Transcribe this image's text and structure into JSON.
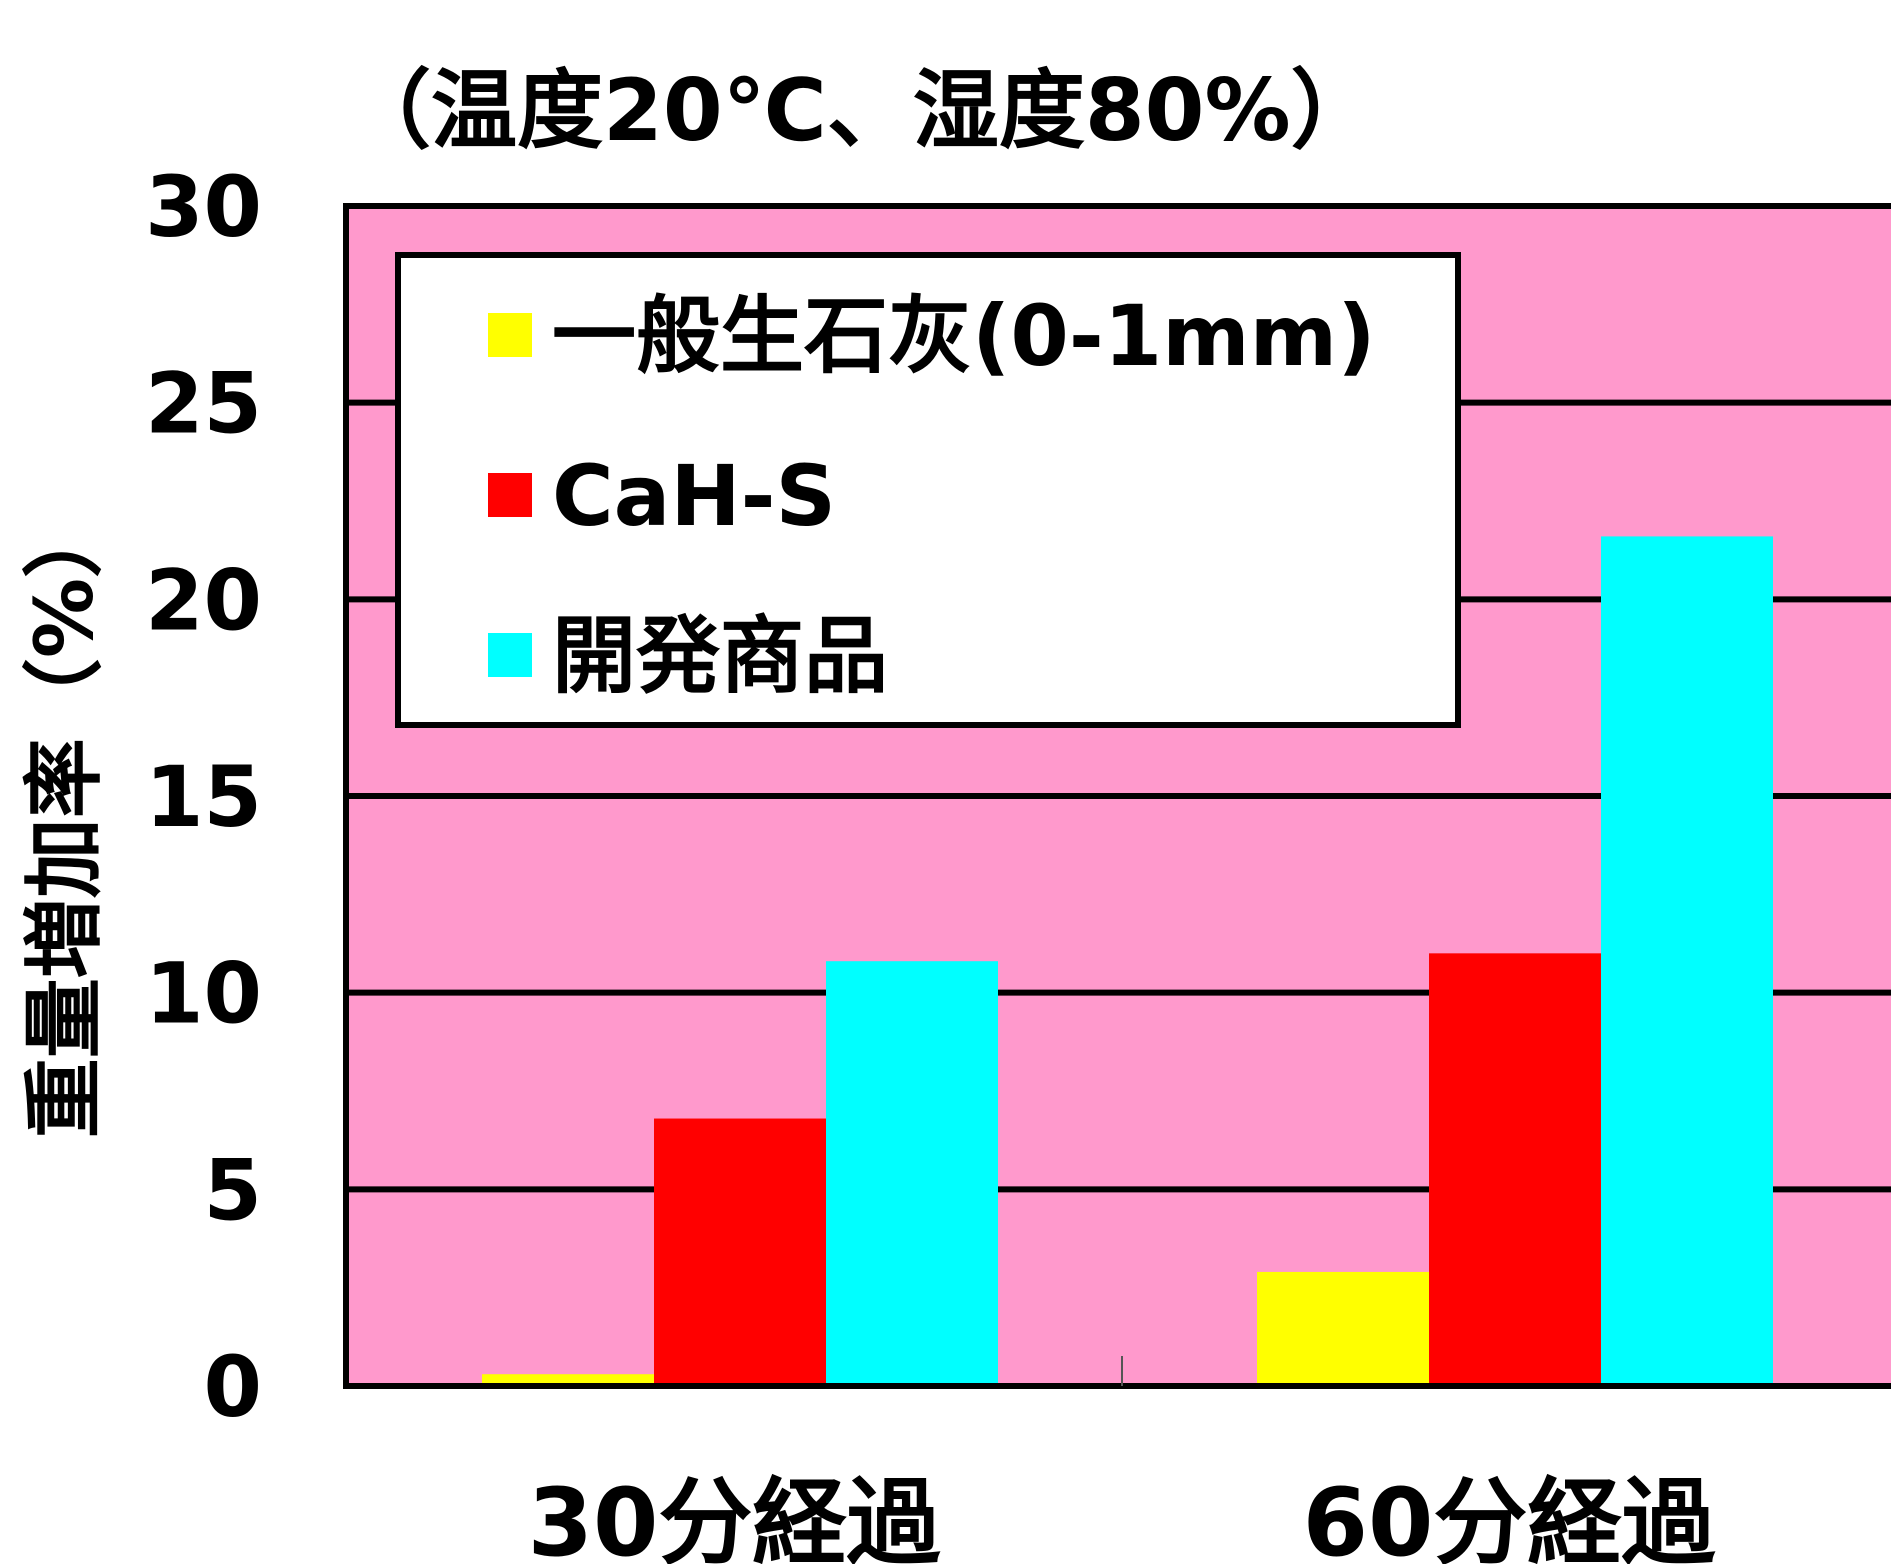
{
  "chart_data": {
    "type": "bar",
    "title": "（温度20℃、湿度80%）",
    "ylabel": "重量増加率（%）",
    "xlabel": "",
    "ylim": [
      0,
      30
    ],
    "yticks": [
      0,
      5,
      10,
      15,
      20,
      25,
      30
    ],
    "grid": true,
    "legend": "top-left",
    "background_color": "#ff99cc",
    "categories": [
      "30分経過",
      "60分経過"
    ],
    "series": [
      {
        "name": "一般生石灰(0-1mm)",
        "color": "#ffff00",
        "values": [
          0.3,
          2.9
        ]
      },
      {
        "name": "CaH-S",
        "color": "#ff0000",
        "values": [
          6.8,
          11.0
        ]
      },
      {
        "name": "開発商品",
        "color": "#00ffff",
        "values": [
          10.8,
          21.6
        ]
      }
    ]
  }
}
